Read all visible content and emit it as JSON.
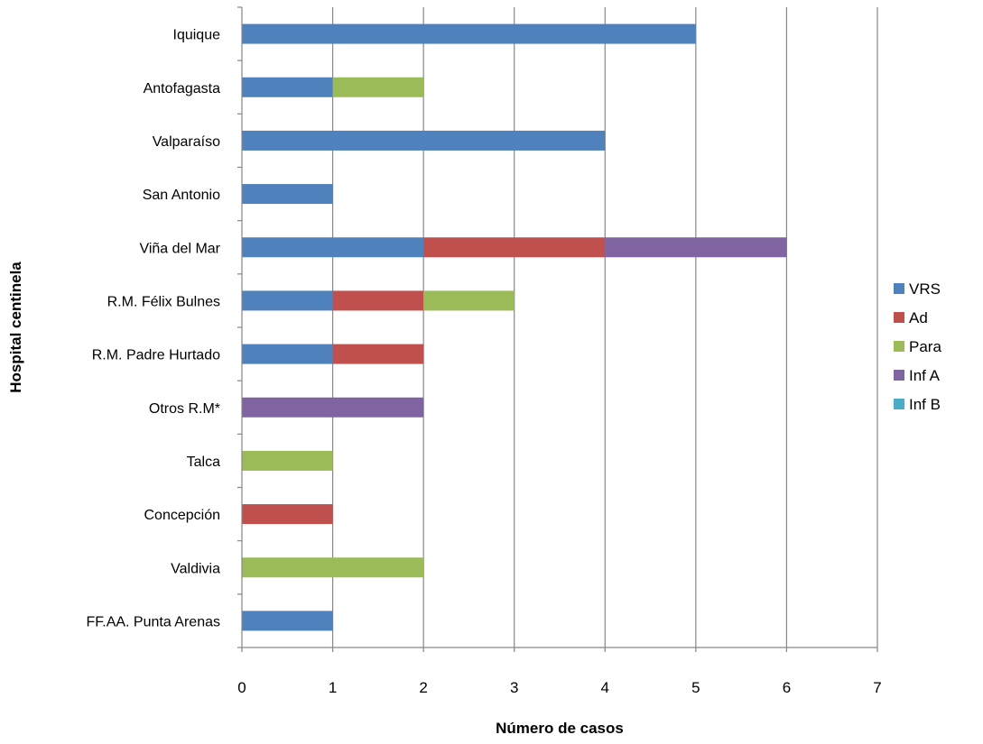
{
  "chart_data": {
    "type": "bar",
    "orientation": "horizontal",
    "stacked": true,
    "categories": [
      "Iquique",
      "Antofagasta",
      "Valparaíso",
      "San Antonio",
      "Viña del Mar",
      "R.M. Félix Bulnes",
      "R.M. Padre Hurtado",
      "Otros R.M*",
      "Talca",
      "Concepción",
      "Valdivia",
      "FF.AA. Punta Arenas"
    ],
    "series": [
      {
        "name": "VRS",
        "color": "#4f81bd",
        "values": [
          5,
          1,
          4,
          1,
          2,
          1,
          1,
          0,
          0,
          0,
          0,
          1
        ]
      },
      {
        "name": "Ad",
        "color": "#c0504d",
        "values": [
          0,
          0,
          0,
          0,
          2,
          1,
          1,
          0,
          0,
          1,
          0,
          0
        ]
      },
      {
        "name": "Para",
        "color": "#9bbb59",
        "values": [
          0,
          1,
          0,
          0,
          0,
          1,
          0,
          0,
          1,
          0,
          2,
          0
        ]
      },
      {
        "name": "Inf A",
        "color": "#8064a2",
        "values": [
          0,
          0,
          0,
          0,
          2,
          0,
          0,
          2,
          0,
          0,
          0,
          0
        ]
      },
      {
        "name": "Inf B",
        "color": "#4bacc6",
        "values": [
          0,
          0,
          0,
          0,
          0,
          0,
          0,
          0,
          0,
          0,
          0,
          0
        ]
      }
    ],
    "xlabel": "Número de casos",
    "ylabel": "Hospital centinela",
    "xlim": [
      0,
      7
    ],
    "xticks": [
      "0",
      "1",
      "2",
      "3",
      "4",
      "5",
      "6",
      "7"
    ],
    "grid": "vertical",
    "legend": "right"
  }
}
